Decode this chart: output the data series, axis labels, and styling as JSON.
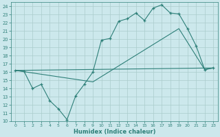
{
  "xlabel": "Humidex (Indice chaleur)",
  "bg_color": "#cce8ec",
  "line_color": "#2d7f78",
  "grid_color": "#aacccc",
  "xlim": [
    -0.5,
    23.5
  ],
  "ylim": [
    10,
    24.5
  ],
  "yticks": [
    10,
    11,
    12,
    13,
    14,
    15,
    16,
    17,
    18,
    19,
    20,
    21,
    22,
    23,
    24
  ],
  "xticks": [
    0,
    1,
    2,
    3,
    4,
    5,
    6,
    7,
    8,
    9,
    10,
    11,
    12,
    13,
    14,
    15,
    16,
    17,
    18,
    19,
    20,
    21,
    22,
    23
  ],
  "line1_x": [
    0,
    1,
    2,
    3,
    4,
    5,
    6,
    7,
    8,
    9,
    10,
    11,
    12,
    13,
    14,
    15,
    16,
    17,
    18,
    19,
    20,
    21,
    22,
    23
  ],
  "line1_y": [
    16.2,
    16.1,
    14.0,
    14.5,
    12.5,
    11.5,
    10.2,
    13.1,
    14.5,
    16.0,
    19.9,
    20.1,
    22.2,
    22.5,
    23.2,
    22.3,
    23.8,
    24.2,
    23.2,
    23.1,
    21.3,
    19.2,
    16.3,
    16.5
  ],
  "line2_x": [
    0,
    23
  ],
  "line2_y": [
    16.2,
    16.5
  ],
  "line3_x": [
    0,
    9,
    19,
    22,
    23
  ],
  "line3_y": [
    16.2,
    14.8,
    21.3,
    16.3,
    16.5
  ]
}
